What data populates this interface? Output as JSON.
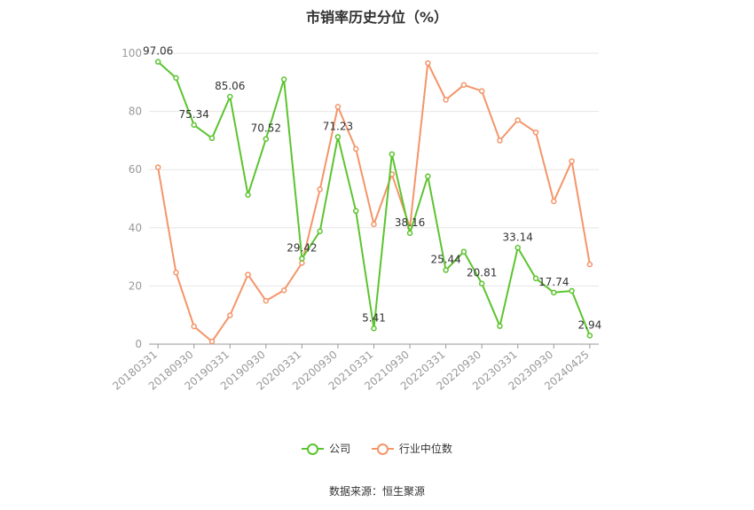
{
  "chart_data": {
    "type": "line",
    "title": "市销率历史分位（%）",
    "xlabel": "",
    "ylabel": "",
    "ylim": [
      0,
      100
    ],
    "yticks": [
      0,
      20,
      40,
      60,
      80,
      100
    ],
    "x": [
      "20180331",
      "20180630",
      "20180930",
      "20181231",
      "20190331",
      "20190630",
      "20190930",
      "20191231",
      "20200331",
      "20200630",
      "20200930",
      "20201231",
      "20210331",
      "20210630",
      "20210930",
      "20211231",
      "20220331",
      "20220630",
      "20220930",
      "20221231",
      "20230331",
      "20230630",
      "20230930",
      "20231231",
      "20240425"
    ],
    "xtick_labels": [
      "20180331",
      "20180930",
      "20190331",
      "20190930",
      "20200331",
      "20200930",
      "20210331",
      "20210930",
      "20220331",
      "20220930",
      "20230331",
      "20230930",
      "20240425"
    ],
    "series": [
      {
        "name": "公司",
        "color": "#5cc42f",
        "values": [
          97.06,
          91.5,
          75.34,
          70.8,
          85.06,
          51.3,
          70.52,
          91.0,
          29.42,
          38.8,
          71.23,
          45.8,
          5.41,
          65.3,
          38.16,
          57.7,
          25.44,
          31.8,
          20.81,
          6.2,
          33.14,
          22.6,
          17.74,
          18.3,
          2.94
        ],
        "labels": {
          "0": "97.06",
          "2": "75.34",
          "4": "85.06",
          "6": "70.52",
          "8": "29.42",
          "10": "71.23",
          "12": "5.41",
          "14": "38.16",
          "16": "25.44",
          "18": "20.81",
          "20": "33.14",
          "22": "17.74",
          "24": "2.94"
        }
      },
      {
        "name": "行业中位数",
        "color": "#f4956a",
        "values": [
          60.8,
          24.6,
          6.1,
          0.9,
          9.9,
          23.9,
          14.9,
          18.5,
          27.9,
          53.2,
          81.6,
          67.1,
          41.2,
          58.4,
          40.1,
          96.6,
          84.0,
          89.1,
          87.0,
          70.0,
          77.0,
          72.8,
          49.1,
          62.9,
          27.4
        ]
      }
    ],
    "legend_position": "bottom",
    "grid": true
  },
  "source_text": "数据来源：恒生聚源"
}
